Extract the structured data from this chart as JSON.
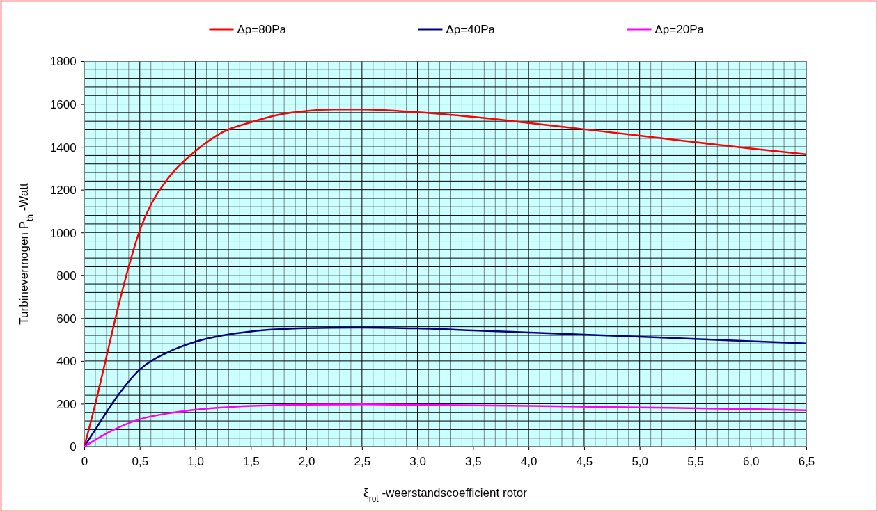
{
  "chart_data": {
    "type": "line",
    "xlabel": "ξ$_{rot}$ -weerstandscoefficient rotor",
    "ylabel": "Turbinevermogen P$_{th}$ -Watt",
    "xlim": [
      0,
      6.5
    ],
    "ylim": [
      0,
      1800
    ],
    "xticks": [
      0,
      {
        "value": 0.5,
        "label": "0,5"
      },
      {
        "value": 1,
        "label": "1,0"
      },
      {
        "value": 1.5,
        "label": "1,5"
      },
      {
        "value": 2,
        "label": "2,0"
      },
      {
        "value": 2.5,
        "label": "2,5"
      },
      {
        "value": 3,
        "label": "3,0"
      },
      {
        "value": 3.5,
        "label": "3,5"
      },
      {
        "value": 4,
        "label": "4,0"
      },
      {
        "value": 4.5,
        "label": "4,5"
      },
      {
        "value": 5,
        "label": "5,0"
      },
      {
        "value": 5.5,
        "label": "5,5"
      },
      {
        "value": 6,
        "label": "6,0"
      },
      {
        "value": 6.5,
        "label": "6,5"
      }
    ],
    "yticks": [
      0,
      200,
      400,
      600,
      800,
      1000,
      1200,
      1400,
      1600,
      1800
    ],
    "grid": true,
    "legend": "top",
    "marker": "none",
    "line_style": "solid",
    "series": [
      {
        "name": "Δp=80Pa",
        "color": "#ff0000",
        "x": [
          0,
          0.1,
          0.2,
          0.3,
          0.4,
          0.5,
          0.6,
          0.75,
          1,
          1.25,
          1.5,
          1.75,
          2,
          2.25,
          2.5,
          3,
          3.5,
          4,
          4.5,
          5,
          5.5,
          6,
          6.5
        ],
        "values": [
          0,
          200,
          420,
          640,
          840,
          1010,
          1130,
          1250,
          1380,
          1470,
          1515,
          1550,
          1568,
          1575,
          1575,
          1562,
          1540,
          1512,
          1482,
          1452,
          1422,
          1392,
          1365
        ]
      },
      {
        "name": "Δp=40Pa",
        "color": "#000080",
        "x": [
          0,
          0.1,
          0.25,
          0.5,
          0.75,
          1,
          1.25,
          1.5,
          2,
          2.5,
          3,
          3.5,
          4,
          4.5,
          5,
          5.5,
          6,
          6.5
        ],
        "values": [
          0,
          80,
          200,
          360,
          440,
          490,
          520,
          538,
          553,
          556,
          552,
          543,
          533,
          523,
          513,
          503,
          492,
          482
        ]
      },
      {
        "name": "Δp=20Pa",
        "color": "#ff00ff",
        "x": [
          0,
          0.25,
          0.5,
          0.75,
          1,
          1.5,
          2,
          2.5,
          3,
          4,
          5,
          6,
          6.5
        ],
        "values": [
          0,
          75,
          128,
          155,
          172,
          190,
          196,
          197,
          195,
          190,
          183,
          175,
          170
        ]
      }
    ]
  }
}
